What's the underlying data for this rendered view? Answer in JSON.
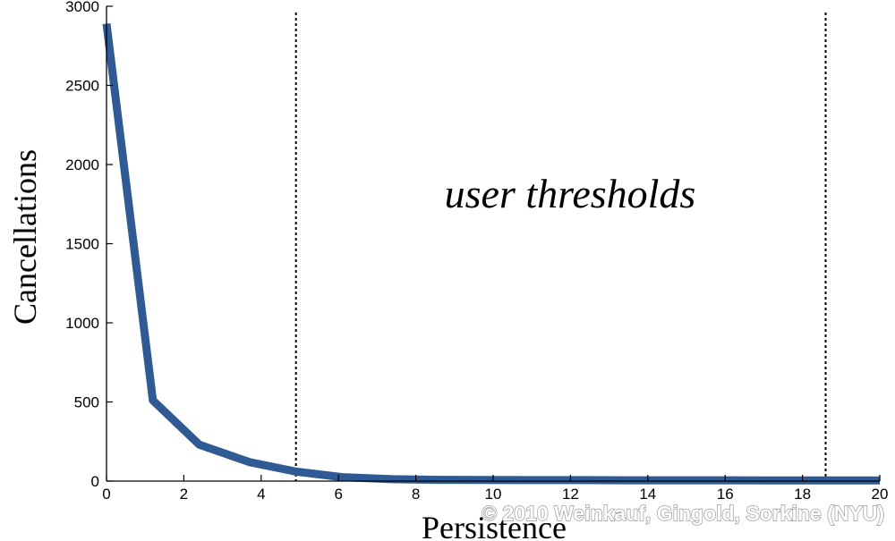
{
  "chart_data": {
    "type": "line",
    "title": "",
    "xlabel": "Persistence",
    "ylabel": "Cancellations",
    "xlim": [
      0,
      20
    ],
    "ylim": [
      0,
      3000
    ],
    "xticks": [
      0,
      2,
      4,
      6,
      8,
      10,
      12,
      14,
      16,
      18,
      20
    ],
    "yticks": [
      0,
      500,
      1000,
      1500,
      2000,
      2500,
      3000
    ],
    "grid": false,
    "series": [
      {
        "color": "#2f5a94",
        "x": [
          0,
          1.2,
          2.4,
          3.7,
          4.9,
          6.1,
          7.4,
          8.6,
          9.8,
          11.0,
          12.3,
          13.5,
          14.7,
          15.9,
          17.2,
          18.4,
          19.6,
          20
        ],
        "y": [
          2890,
          510,
          230,
          120,
          60,
          25,
          12,
          8,
          7,
          6,
          6,
          5,
          5,
          5,
          4,
          4,
          4,
          4
        ]
      }
    ],
    "thresholds": [
      4.9,
      18.6
    ],
    "annotation": "user thresholds"
  },
  "watermark": "© 2010 Weinkauf, Gingold, Sorkine (NYU)"
}
